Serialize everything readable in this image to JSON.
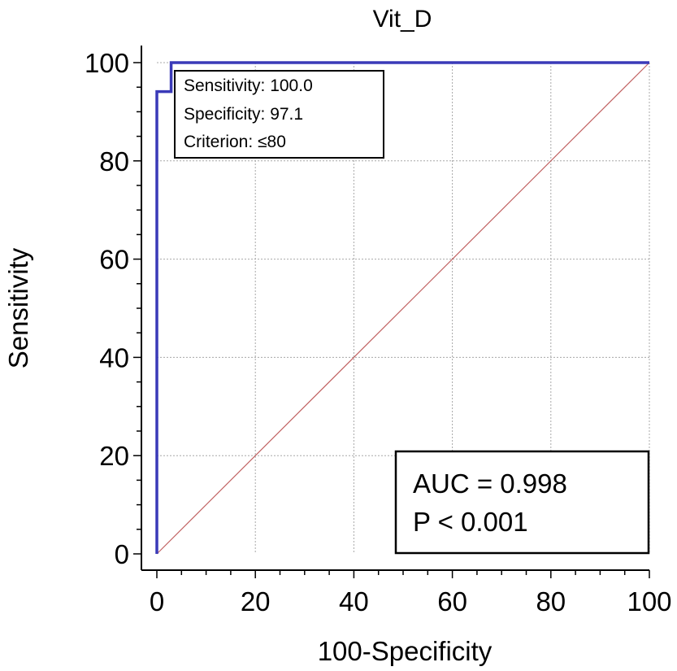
{
  "chart_data": {
    "type": "line",
    "title": "Vit_D",
    "xlabel": "100-Specificity",
    "ylabel": "Sensitivity",
    "xlim": [
      0,
      100
    ],
    "ylim": [
      0,
      100
    ],
    "xticks": [
      "0",
      "20",
      "40",
      "60",
      "80",
      "100"
    ],
    "yticks": [
      "0",
      "20",
      "40",
      "60",
      "80",
      "100"
    ],
    "grid": true,
    "series": [
      {
        "color": "#3a3ab8",
        "style": "step",
        "points": [
          [
            0,
            0
          ],
          [
            0,
            94.1
          ],
          [
            2.9,
            94.1
          ],
          [
            2.9,
            100
          ],
          [
            100,
            100
          ]
        ]
      },
      {
        "color": "#c06060",
        "style": "reference-diagonal",
        "points": [
          [
            0,
            0
          ],
          [
            100,
            100
          ]
        ]
      }
    ],
    "annotations": {
      "cutoff_box": {
        "lines": [
          "Sensitivity: 100.0",
          "Specificity: 97.1",
          "Criterion: ≤80"
        ],
        "anchor": [
          2.9,
          100
        ]
      },
      "stats_box": {
        "lines": [
          "AUC = 0.998",
          "P < 0.001"
        ],
        "placement": "bottom-right"
      }
    }
  }
}
